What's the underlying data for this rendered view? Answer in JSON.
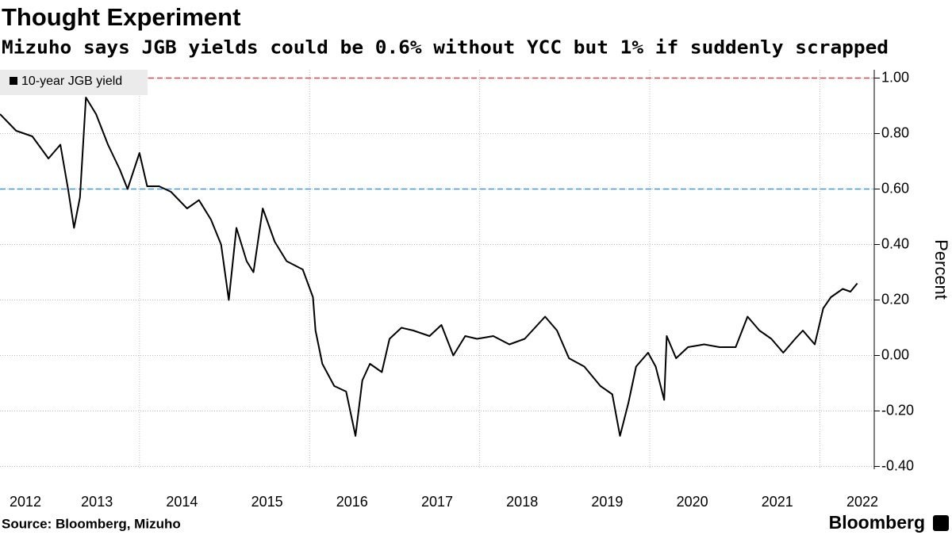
{
  "chart_data": {
    "type": "line",
    "title": "Thought Experiment",
    "subtitle": "Mizuho says JGB yields could be 0.6% without YCC but 1% if suddenly scrapped",
    "y_label": "Percent",
    "source": "Source: Bloomberg, Mizuho",
    "brand": "Bloomberg",
    "legend": "top-left",
    "grid": true,
    "xlim": [
      2012.36,
      2022.64
    ],
    "xticks": [
      2012,
      2013,
      2014,
      2015,
      2016,
      2017,
      2018,
      2019,
      2020,
      2021,
      2022
    ],
    "ylim": [
      -0.41,
      1.03
    ],
    "yticks": [
      {
        "value": 1,
        "label": "1.00"
      },
      {
        "value": 0.8,
        "label": "0.80"
      },
      {
        "value": 0.6,
        "label": "0.60"
      },
      {
        "value": 0.4,
        "label": "0.40"
      },
      {
        "value": 0.2,
        "label": "0.20"
      },
      {
        "value": 0,
        "label": "0.00"
      },
      {
        "value": -0.2,
        "label": "-0.20"
      },
      {
        "value": -0.4,
        "label": "-0.40"
      }
    ],
    "reference_lines": [
      {
        "value": 1,
        "color": "#e0474c"
      },
      {
        "value": 0.6,
        "color": "#3b9be0"
      }
    ],
    "x": [
      2012.36,
      2012.55,
      2012.74,
      2012.93,
      2013.07,
      2013.16,
      2013.23,
      2013.3,
      2013.37,
      2013.49,
      2013.63,
      2013.77,
      2013.86,
      2014.0,
      2014.09,
      2014.23,
      2014.37,
      2014.56,
      2014.7,
      2014.84,
      2014.96,
      2015.05,
      2015.14,
      2015.26,
      2015.34,
      2015.45,
      2015.59,
      2015.73,
      2015.92,
      2016.04,
      2016.07,
      2016.15,
      2016.29,
      2016.43,
      2016.54,
      2016.62,
      2016.71,
      2016.85,
      2016.94,
      2017.08,
      2017.22,
      2017.41,
      2017.55,
      2017.69,
      2017.83,
      2017.97,
      2018.16,
      2018.35,
      2018.53,
      2018.77,
      2018.91,
      2019.05,
      2019.23,
      2019.42,
      2019.56,
      2019.65,
      2019.75,
      2019.84,
      2019.98,
      2020.07,
      2020.17,
      2020.2,
      2020.31,
      2020.45,
      2020.64,
      2020.82,
      2021.01,
      2021.15,
      2021.29,
      2021.43,
      2021.57,
      2021.71,
      2021.8,
      2021.94,
      2022.04,
      2022.13,
      2022.27,
      2022.36,
      2022.44
    ],
    "series": [
      {
        "name": "10-year JGB yield",
        "color": "#000000",
        "values": [
          0.87,
          0.81,
          0.79,
          0.71,
          0.76,
          0.6,
          0.46,
          0.57,
          0.93,
          0.87,
          0.76,
          0.67,
          0.6,
          0.73,
          0.61,
          0.61,
          0.59,
          0.53,
          0.56,
          0.49,
          0.4,
          0.2,
          0.46,
          0.34,
          0.3,
          0.53,
          0.41,
          0.34,
          0.31,
          0.21,
          0.09,
          -0.03,
          -0.11,
          -0.13,
          -0.29,
          -0.09,
          -0.03,
          -0.06,
          0.06,
          0.1,
          0.09,
          0.07,
          0.11,
          0.0,
          0.07,
          0.06,
          0.07,
          0.04,
          0.06,
          0.14,
          0.09,
          -0.01,
          -0.04,
          -0.11,
          -0.14,
          -0.29,
          -0.17,
          -0.04,
          0.01,
          -0.04,
          -0.16,
          0.07,
          -0.01,
          0.03,
          0.04,
          0.03,
          0.03,
          0.14,
          0.09,
          0.06,
          0.01,
          0.06,
          0.09,
          0.04,
          0.17,
          0.21,
          0.24,
          0.23,
          0.26
        ]
      }
    ]
  }
}
